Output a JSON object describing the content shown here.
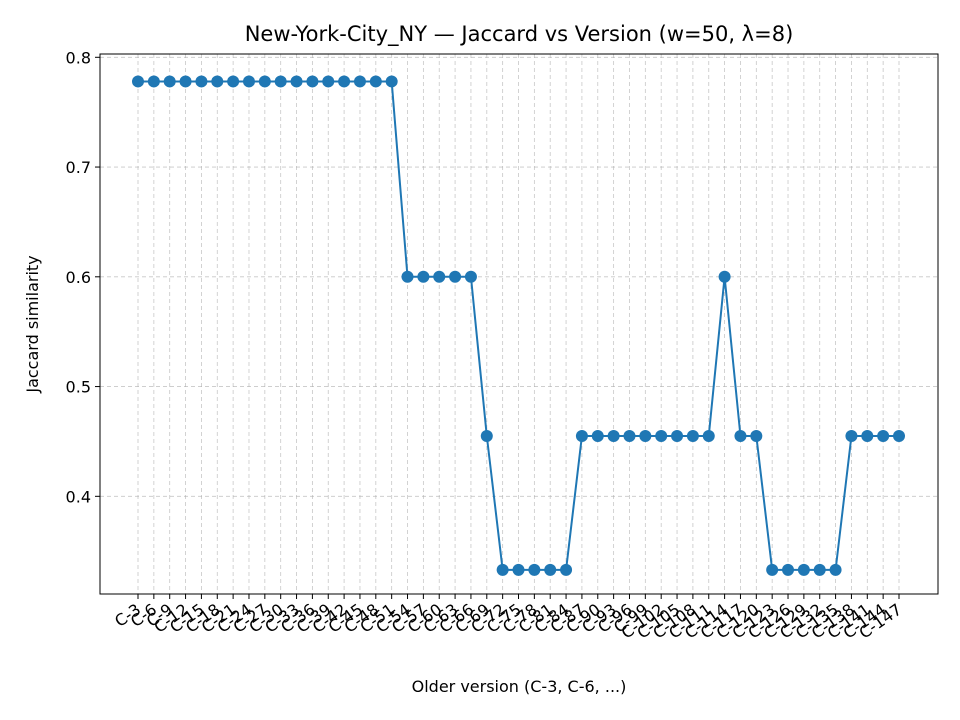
{
  "chart_data": {
    "type": "line",
    "title": "New-York-City_NY — Jaccard vs Version (w=50, λ=8)",
    "xlabel": "Older version (C-3, C-6, ...)",
    "ylabel": "Jaccard similarity",
    "ylim": [
      0.311,
      0.803
    ],
    "yticks": [
      0.4,
      0.5,
      0.6,
      0.7,
      0.8
    ],
    "grid": true,
    "line_color": "#1f77b4",
    "categories": [
      "C-3",
      "C-6",
      "C-9",
      "C-12",
      "C-15",
      "C-18",
      "C-21",
      "C-24",
      "C-27",
      "C-30",
      "C-33",
      "C-36",
      "C-39",
      "C-42",
      "C-45",
      "C-48",
      "C-51",
      "C-54",
      "C-57",
      "C-60",
      "C-63",
      "C-66",
      "C-69",
      "C-72",
      "C-75",
      "C-78",
      "C-81",
      "C-84",
      "C-87",
      "C-90",
      "C-93",
      "C-96",
      "C-99",
      "C-102",
      "C-105",
      "C-108",
      "C-111",
      "C-114",
      "C-117",
      "C-120",
      "C-123",
      "C-126",
      "C-129",
      "C-132",
      "C-135",
      "C-138",
      "C-141",
      "C-144",
      "C-147"
    ],
    "values": [
      0.778,
      0.778,
      0.778,
      0.778,
      0.778,
      0.778,
      0.778,
      0.778,
      0.778,
      0.778,
      0.778,
      0.778,
      0.778,
      0.778,
      0.778,
      0.778,
      0.778,
      0.6,
      0.6,
      0.6,
      0.6,
      0.6,
      0.455,
      0.333,
      0.333,
      0.333,
      0.333,
      0.333,
      0.455,
      0.455,
      0.455,
      0.455,
      0.455,
      0.455,
      0.455,
      0.455,
      0.455,
      0.6,
      0.455,
      0.455,
      0.333,
      0.333,
      0.333,
      0.333,
      0.333,
      0.455,
      0.455,
      0.455,
      0.455
    ]
  }
}
